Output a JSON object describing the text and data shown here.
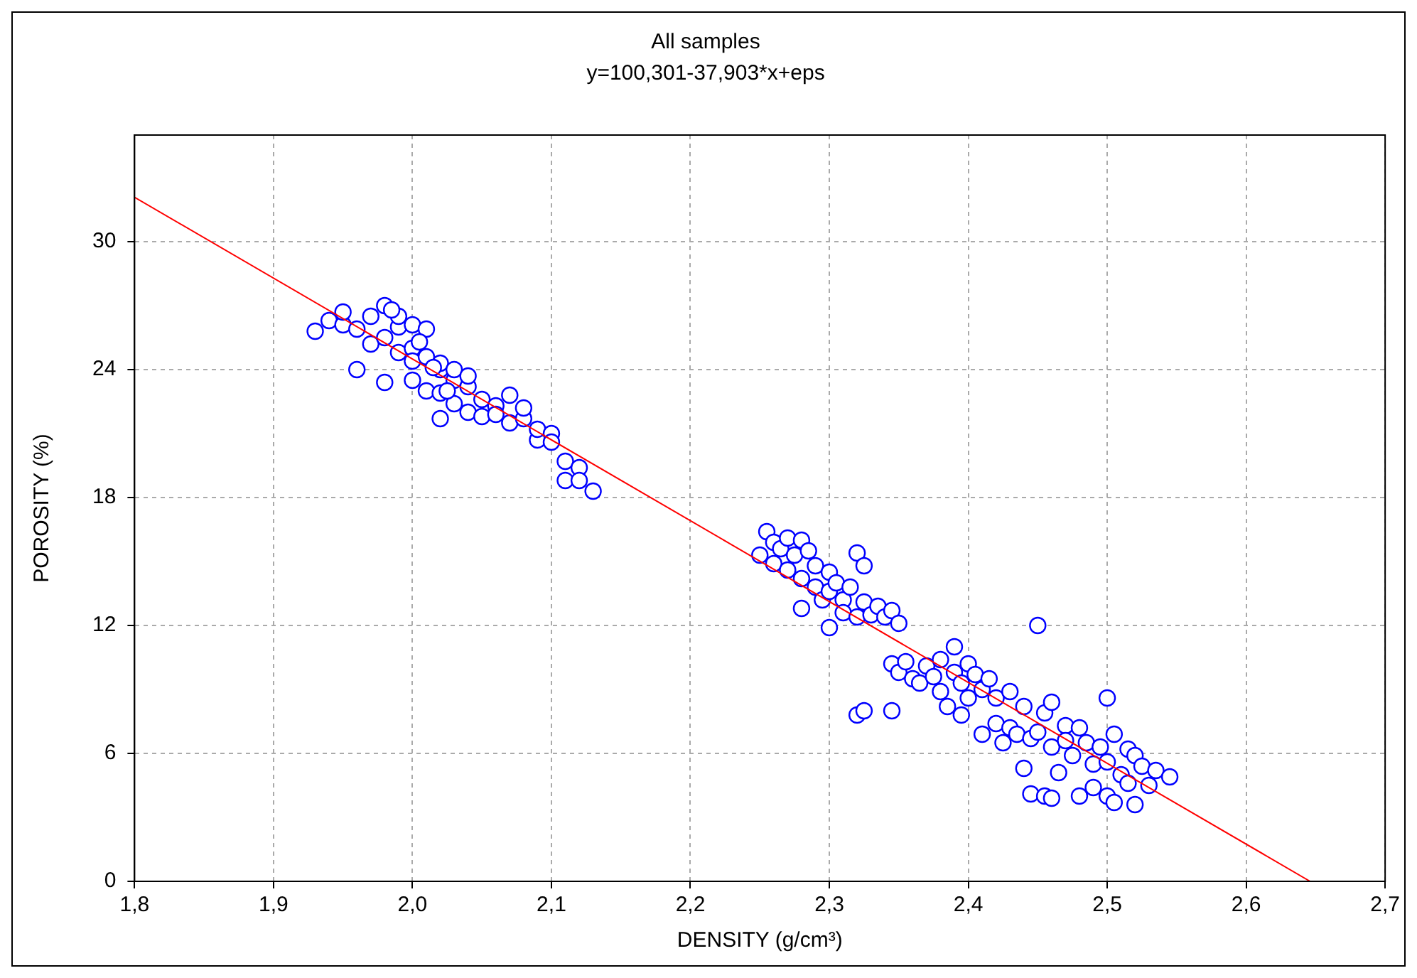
{
  "chart_data": {
    "type": "scatter",
    "title": "All samples",
    "subtitle": "y=100,301-37,903*x+eps",
    "xlabel": "DENSITY (g/cm³)",
    "ylabel": "POROSITY (%)",
    "xlim": [
      1.8,
      2.7
    ],
    "xticks": [
      {
        "value": 1.8,
        "label": "1,8"
      },
      {
        "value": 1.9,
        "label": "1,9"
      },
      {
        "value": 2.0,
        "label": "2,0"
      },
      {
        "value": 2.1,
        "label": "2,1"
      },
      {
        "value": 2.2,
        "label": "2,2"
      },
      {
        "value": 2.3,
        "label": "2,3"
      },
      {
        "value": 2.4,
        "label": "2,4"
      },
      {
        "value": 2.5,
        "label": "2,5"
      },
      {
        "value": 2.6,
        "label": "2,6"
      },
      {
        "value": 2.7,
        "label": "2,7"
      }
    ],
    "ylim": [
      0,
      35
    ],
    "yticks": [
      0,
      6,
      12,
      18,
      24,
      30
    ],
    "grid": true,
    "legend": false,
    "series": [
      {
        "type": "scatter",
        "marker": "circle",
        "color": "#0000ff",
        "x": [
          1.93,
          1.94,
          1.95,
          1.95,
          1.96,
          1.96,
          1.97,
          1.97,
          1.98,
          1.98,
          1.98,
          1.99,
          1.99,
          1.99,
          2.0,
          2.0,
          2.0,
          2.0,
          2.01,
          2.01,
          2.01,
          2.02,
          2.02,
          2.02,
          2.02,
          2.03,
          2.03,
          2.03,
          2.04,
          2.04,
          2.04,
          2.05,
          2.05,
          2.06,
          2.06,
          2.07,
          2.07,
          2.08,
          2.08,
          2.09,
          2.09,
          2.1,
          2.1,
          2.11,
          2.11,
          2.12,
          2.12,
          2.13,
          1.985,
          2.005,
          2.015,
          2.025,
          2.25,
          2.255,
          2.26,
          2.26,
          2.265,
          2.27,
          2.27,
          2.275,
          2.28,
          2.28,
          2.28,
          2.285,
          2.29,
          2.29,
          2.295,
          2.3,
          2.3,
          2.3,
          2.305,
          2.31,
          2.31,
          2.315,
          2.32,
          2.32,
          2.325,
          2.325,
          2.33,
          2.335,
          2.34,
          2.345,
          2.35,
          2.32,
          2.325,
          2.345,
          2.345,
          2.35,
          2.355,
          2.36,
          2.365,
          2.37,
          2.375,
          2.38,
          2.38,
          2.385,
          2.39,
          2.39,
          2.395,
          2.395,
          2.4,
          2.4,
          2.405,
          2.41,
          2.41,
          2.415,
          2.42,
          2.42,
          2.425,
          2.43,
          2.43,
          2.435,
          2.44,
          2.44,
          2.445,
          2.445,
          2.45,
          2.45,
          2.455,
          2.455,
          2.46,
          2.46,
          2.46,
          2.465,
          2.47,
          2.47,
          2.475,
          2.48,
          2.48,
          2.485,
          2.49,
          2.49,
          2.495,
          2.5,
          2.5,
          2.5,
          2.505,
          2.505,
          2.51,
          2.515,
          2.515,
          2.52,
          2.52,
          2.525,
          2.53,
          2.535,
          2.545
        ],
        "values": [
          25.8,
          26.3,
          26.1,
          26.7,
          25.9,
          24.0,
          26.5,
          25.2,
          27.0,
          23.4,
          25.5,
          26.0,
          24.8,
          26.5,
          26.1,
          25.0,
          23.5,
          24.4,
          25.9,
          23.0,
          24.6,
          24.0,
          22.9,
          24.3,
          21.7,
          23.5,
          22.4,
          24.0,
          23.2,
          22.0,
          23.7,
          21.8,
          22.6,
          22.3,
          21.9,
          22.8,
          21.5,
          21.7,
          22.2,
          20.7,
          21.2,
          21.0,
          20.6,
          19.7,
          18.8,
          19.4,
          18.8,
          18.3,
          26.8,
          25.3,
          24.1,
          23.0,
          15.3,
          16.4,
          15.9,
          14.9,
          15.6,
          16.1,
          14.6,
          15.3,
          14.2,
          16.0,
          12.8,
          15.5,
          13.8,
          14.8,
          13.2,
          14.5,
          11.9,
          13.6,
          14.0,
          13.2,
          12.6,
          13.8,
          15.4,
          12.4,
          14.8,
          13.1,
          12.5,
          12.9,
          12.4,
          12.7,
          12.1,
          7.8,
          8.0,
          8.0,
          10.2,
          9.8,
          10.3,
          9.5,
          9.3,
          10.1,
          9.6,
          10.4,
          8.9,
          8.2,
          9.8,
          11.0,
          9.3,
          7.8,
          10.2,
          8.6,
          9.7,
          9.0,
          6.9,
          9.5,
          8.6,
          7.4,
          6.5,
          8.9,
          7.2,
          6.9,
          8.2,
          5.3,
          4.1,
          6.7,
          12.0,
          7.0,
          7.9,
          4.0,
          8.4,
          6.3,
          3.9,
          5.1,
          7.3,
          6.6,
          5.9,
          4.0,
          7.2,
          6.5,
          5.5,
          4.4,
          6.3,
          8.6,
          5.6,
          4.0,
          3.7,
          6.9,
          5.0,
          6.2,
          4.6,
          5.9,
          3.6,
          5.4,
          4.5,
          5.2,
          4.9
        ]
      },
      {
        "type": "line",
        "marker": "none",
        "color": "#ff0000",
        "x": [
          1.8,
          2.646
        ],
        "values": [
          32.08,
          0
        ]
      }
    ]
  }
}
